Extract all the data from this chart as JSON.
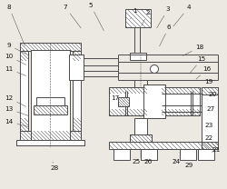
{
  "bg_color": "#ece9e2",
  "lc": "#4a4a4a",
  "lw": 0.7,
  "label_fs": 5.2,
  "labels": [
    [
      1,
      148,
      12,
      143,
      22
    ],
    [
      2,
      163,
      14,
      155,
      30
    ],
    [
      3,
      185,
      10,
      172,
      32
    ],
    [
      4,
      208,
      8,
      190,
      30
    ],
    [
      5,
      100,
      6,
      115,
      35
    ],
    [
      6,
      186,
      30,
      175,
      52
    ],
    [
      7,
      72,
      8,
      90,
      32
    ],
    [
      8,
      10,
      8,
      28,
      52
    ],
    [
      9,
      10,
      50,
      30,
      60
    ],
    [
      10,
      10,
      62,
      30,
      72
    ],
    [
      11,
      10,
      76,
      30,
      84
    ],
    [
      12,
      10,
      108,
      30,
      118
    ],
    [
      13,
      10,
      120,
      33,
      128
    ],
    [
      14,
      10,
      134,
      33,
      140
    ],
    [
      15,
      222,
      65,
      208,
      82
    ],
    [
      16,
      228,
      76,
      215,
      88
    ],
    [
      17,
      127,
      108,
      138,
      112
    ],
    [
      18,
      220,
      52,
      200,
      62
    ],
    [
      19,
      230,
      90,
      220,
      98
    ],
    [
      20,
      234,
      104,
      228,
      110
    ],
    [
      21,
      238,
      165,
      232,
      168
    ],
    [
      22,
      230,
      152,
      225,
      158
    ],
    [
      23,
      230,
      138,
      225,
      144
    ],
    [
      24,
      194,
      178,
      190,
      174
    ],
    [
      25,
      150,
      178,
      152,
      174
    ],
    [
      26,
      163,
      178,
      162,
      174
    ],
    [
      27,
      232,
      120,
      228,
      126
    ],
    [
      28,
      60,
      185,
      58,
      178
    ],
    [
      29,
      208,
      182,
      202,
      174
    ]
  ]
}
